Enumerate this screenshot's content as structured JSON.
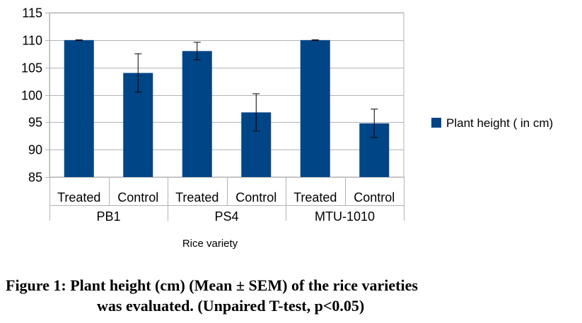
{
  "chart_data": {
    "type": "bar",
    "groups": [
      {
        "label": "PB1",
        "categories": [
          "Treated",
          "Control"
        ]
      },
      {
        "label": "PS4",
        "categories": [
          "Treated",
          "Control"
        ]
      },
      {
        "label": "MTU-1010",
        "categories": [
          "Treated",
          "Control"
        ]
      }
    ],
    "categories": [
      "Treated",
      "Control",
      "Treated",
      "Control",
      "Treated",
      "Control"
    ],
    "series": [
      {
        "name": "Plant height ( in cm)",
        "values": [
          110,
          104,
          108,
          96.8,
          110,
          94.8
        ],
        "errors": [
          0.05,
          3.5,
          1.6,
          3.4,
          0.05,
          2.6
        ],
        "color": "#004586"
      }
    ],
    "xlabel": "Rice variety",
    "ylabel": "",
    "ylim": [
      85,
      115
    ],
    "yticks": [
      85,
      90,
      95,
      100,
      105,
      110,
      115
    ],
    "grid": true,
    "legend": "right"
  },
  "caption": {
    "line1": "Figure 1: Plant height (cm) (Mean ± SEM) of the rice varieties",
    "line2": "was evaluated. (Unpaired T-test, p<0.05)"
  }
}
